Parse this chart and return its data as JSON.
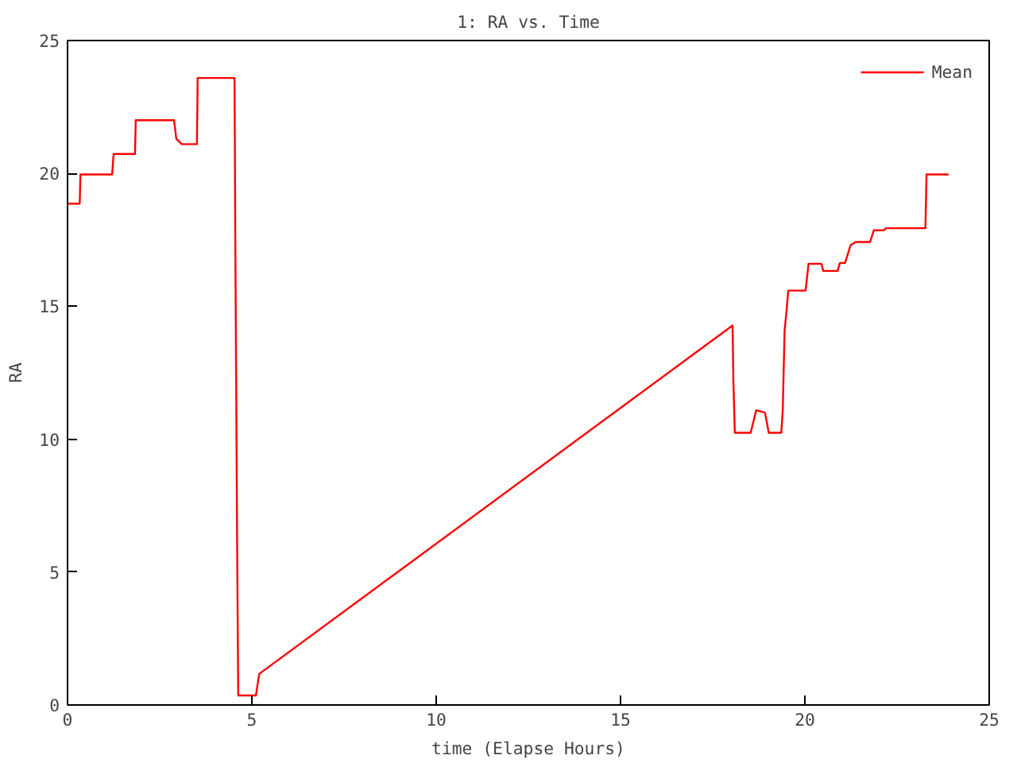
{
  "chart_data": {
    "type": "line",
    "title": "1: RA vs. Time",
    "xlabel": "time (Elapse Hours)",
    "ylabel": "RA",
    "xlim": [
      0,
      25
    ],
    "ylim": [
      0,
      25
    ],
    "xticks": [
      0,
      5,
      10,
      15,
      20,
      25
    ],
    "yticks": [
      0,
      5,
      10,
      15,
      20,
      25
    ],
    "grid": false,
    "legend": "top right",
    "line_style": "solid",
    "marker": "none",
    "series": [
      {
        "name": "Mean",
        "color": "#ff0000",
        "x": [
          0,
          0.33,
          0.35,
          1.21,
          1.25,
          1.83,
          1.85,
          2.89,
          2.95,
          3.1,
          3.51,
          3.53,
          4.53,
          4.55,
          4.6,
          4.63,
          5.11,
          5.2,
          18.04,
          18.06,
          18.1,
          18.53,
          18.68,
          18.92,
          19.02,
          19.36,
          19.4,
          19.45,
          19.5,
          19.55,
          20.02,
          20.1,
          20.45,
          20.5,
          20.89,
          20.95,
          21.09,
          21.24,
          21.38,
          21.77,
          21.87,
          22.14,
          22.2,
          23.27,
          23.3,
          23.9
        ],
        "values": [
          18.86,
          18.86,
          19.96,
          19.96,
          20.73,
          20.73,
          22.0,
          22.0,
          21.3,
          21.1,
          21.1,
          23.59,
          23.59,
          17.8,
          6.2,
          0.36,
          0.36,
          1.17,
          14.28,
          12.26,
          10.24,
          10.24,
          11.09,
          11.0,
          10.24,
          10.24,
          11.09,
          14.08,
          14.78,
          15.59,
          15.59,
          16.6,
          16.6,
          16.33,
          16.33,
          16.63,
          16.63,
          17.3,
          17.42,
          17.42,
          17.86,
          17.86,
          17.94,
          17.94,
          19.96,
          19.96
        ]
      }
    ]
  }
}
